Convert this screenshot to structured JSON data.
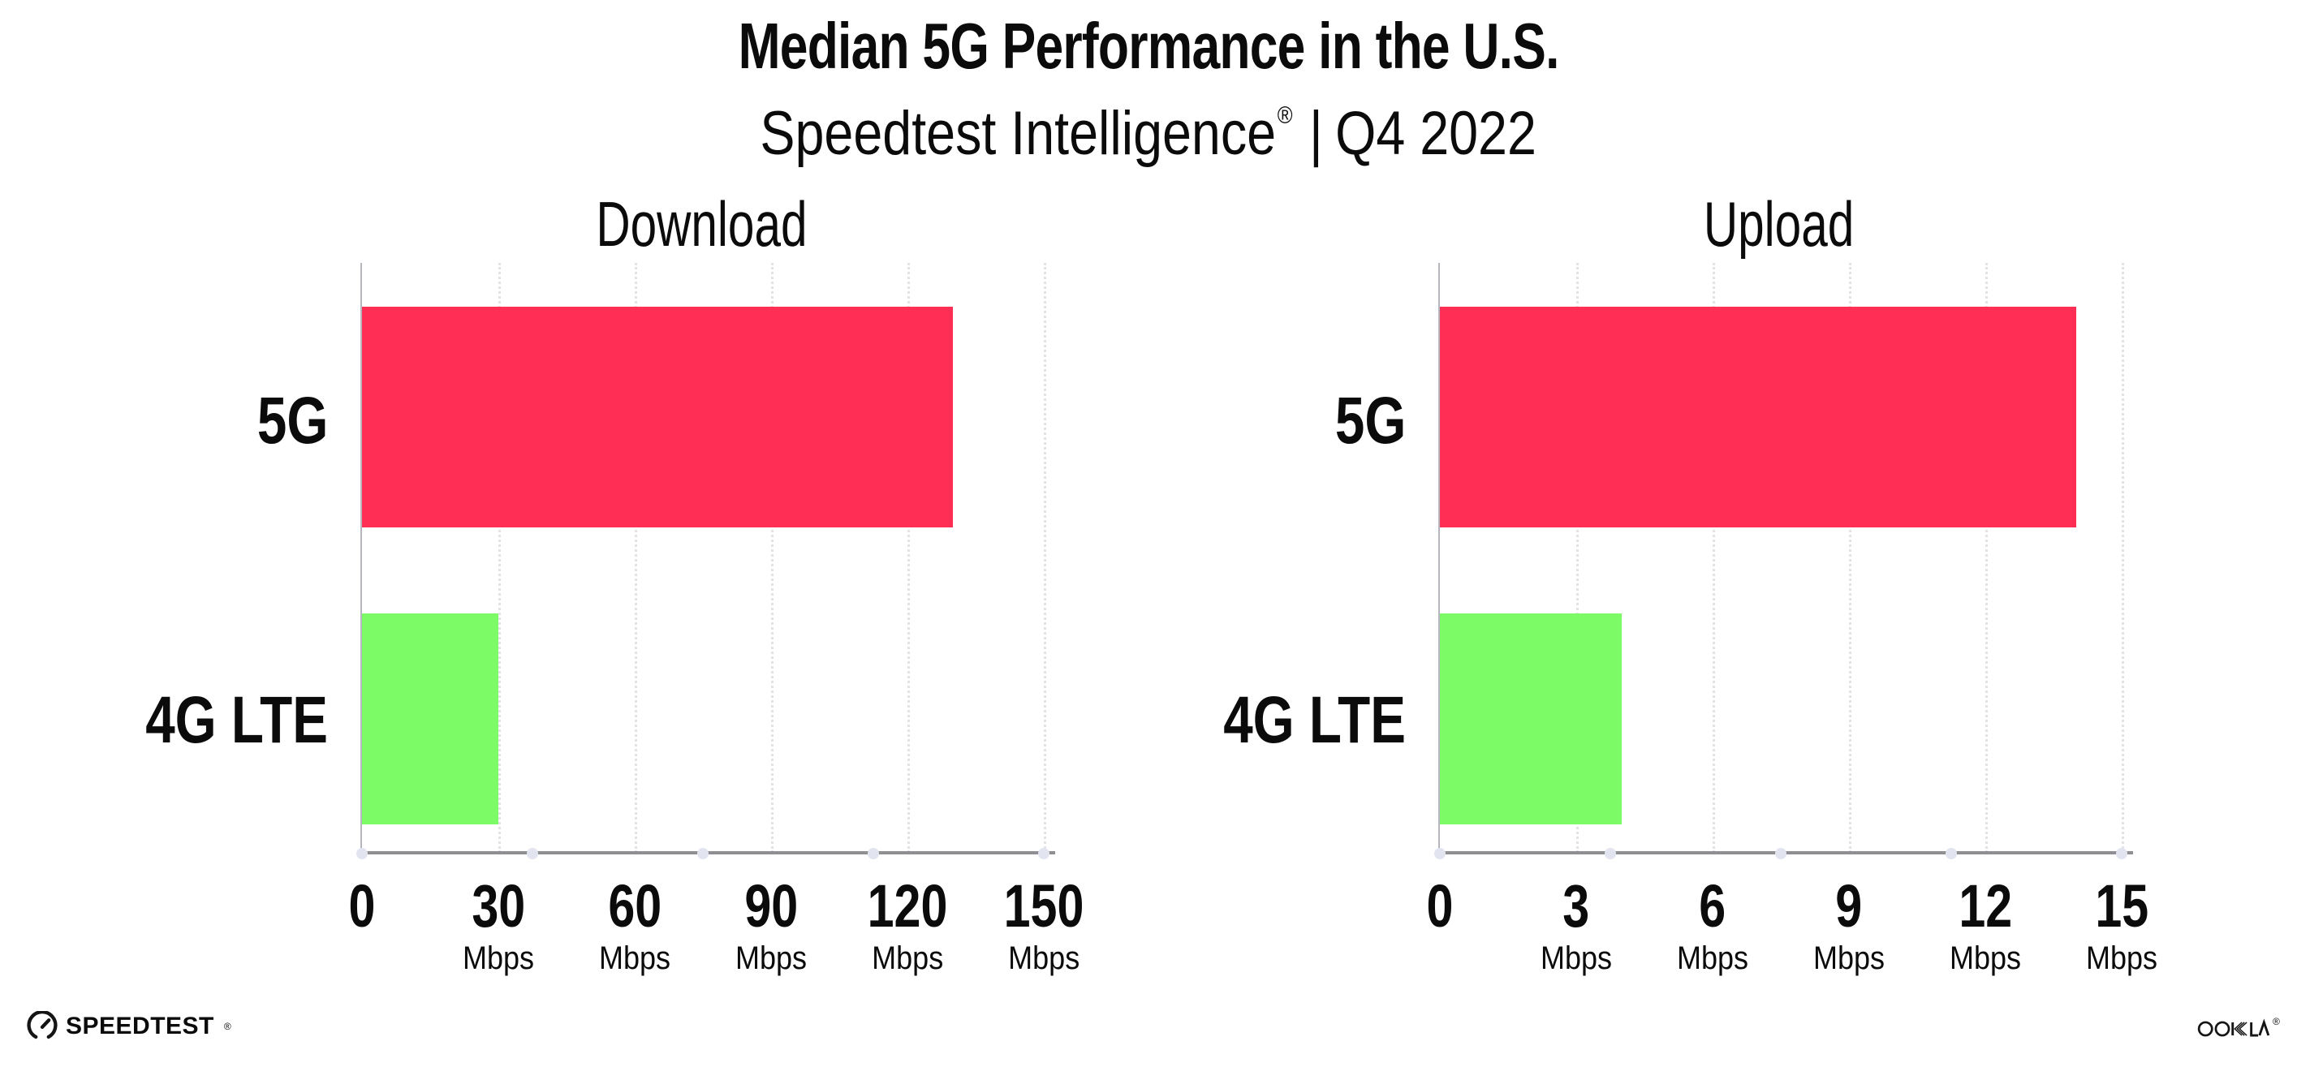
{
  "header": {
    "title": "Median 5G Performance in the U.S.",
    "subtitle": {
      "brand": "Speedtest Intelligence",
      "registered": "®",
      "separator": "|",
      "period": "Q4 2022"
    }
  },
  "chart_data": [
    {
      "type": "bar",
      "orientation": "horizontal",
      "title": "Download",
      "categories": [
        "5G",
        "4G LTE"
      ],
      "values": [
        130,
        30
      ],
      "unit": "Mbps",
      "xlim": [
        0,
        150
      ],
      "xticks": [
        0,
        30,
        60,
        90,
        120,
        150
      ],
      "bar_colors": [
        "#ff2e55",
        "#7dfb66"
      ],
      "axis_dot_fracs": [
        0,
        0.25,
        0.5,
        0.75,
        1
      ],
      "grid": "vertical dotted lines at labeled ticks",
      "legend": "none"
    },
    {
      "type": "bar",
      "orientation": "horizontal",
      "title": "Upload",
      "categories": [
        "5G",
        "4G LTE"
      ],
      "values": [
        14,
        4
      ],
      "unit": "Mbps",
      "xlim": [
        0,
        15
      ],
      "xticks": [
        0,
        3,
        6,
        9,
        12,
        15
      ],
      "bar_colors": [
        "#ff2e55",
        "#7dfb66"
      ],
      "axis_dot_fracs": [
        0,
        0.25,
        0.5,
        0.75,
        1
      ],
      "grid": "vertical dotted lines at labeled ticks",
      "legend": "none"
    }
  ],
  "footer": {
    "speedtest": {
      "icon": "speedtest-gauge-icon",
      "label": "SPEEDTEST",
      "registered": "®"
    },
    "ookla": {
      "icon": "ookla-logo",
      "label": "OOKLA",
      "registered": "®"
    }
  },
  "colors": {
    "background": "#ffffff",
    "bar_5g": "#ff2e55",
    "bar_4g_lte": "#7dfb66",
    "axis_line": "#8e8e93",
    "gridline": "#e2e2e7",
    "axis_tick_dot": "#e2e4f0",
    "text": "#0b0b0b"
  }
}
